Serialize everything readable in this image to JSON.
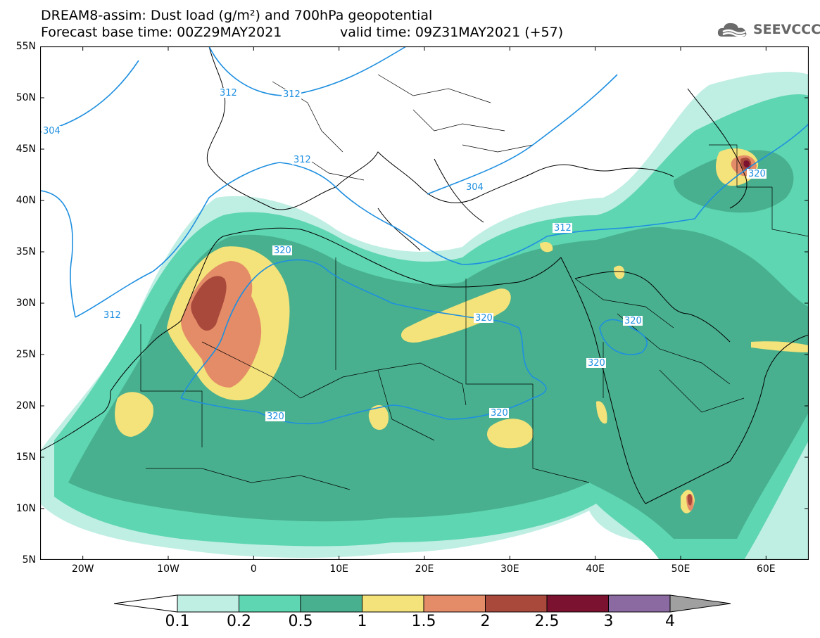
{
  "header": {
    "title_line1": "DREAM8-assim: Dust load (g/m²) and 700hPa geopotential",
    "title_line2": "Forecast base time: 00Z29MAY2021",
    "valid_time": "valid time: 09Z31MAY2021 (+57)",
    "logo_text": "SEEVCCC"
  },
  "map": {
    "region": "Northern Africa, Europe, Middle East",
    "lat_range": [
      5,
      55
    ],
    "lon_range": [
      -25,
      65
    ],
    "lat_labels": [
      "55N",
      "50N",
      "45N",
      "40N",
      "35N",
      "30N",
      "25N",
      "20N",
      "15N",
      "10N",
      "5N"
    ],
    "lon_labels": [
      "20W",
      "10W",
      "0",
      "10E",
      "20E",
      "30E",
      "40E",
      "50E",
      "60E"
    ],
    "contour_labels": [
      "312",
      "312",
      "312",
      "312",
      "312",
      "304",
      "304",
      "320",
      "320",
      "320",
      "320",
      "320",
      "320",
      "320"
    ],
    "contour_color": "#1e8fe0",
    "dust_colors": {
      "0.1": "#bfeee3",
      "0.2": "#5ed6b1",
      "0.5": "#48b08e",
      "1": "#f4e27a",
      "1.5": "#e48c67",
      "2": "#a9493c",
      "2.5": "#7a1230",
      "3": "#8a6aa0",
      "4": "#a0a0a0"
    }
  },
  "legend": {
    "labels": [
      "0.1",
      "0.2",
      "0.5",
      "1",
      "1.5",
      "2",
      "2.5",
      "3",
      "4"
    ],
    "colors": [
      "#bfeee3",
      "#5ed6b1",
      "#48b08e",
      "#f4e27a",
      "#e48c67",
      "#a9493c",
      "#7a1230",
      "#8a6aa0"
    ],
    "low_arrow_color": "#ffffff",
    "high_arrow_color": "#a0a0a0"
  }
}
